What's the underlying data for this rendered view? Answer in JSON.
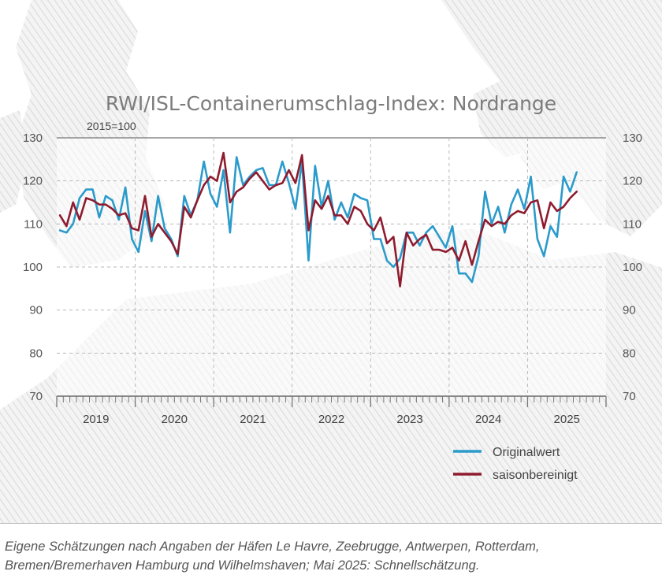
{
  "colors": {
    "original": "#2b9bcb",
    "seasonal": "#8e1b2e",
    "title": "#7c7c7c",
    "grid": "#b8b8b8",
    "map": "#e9e9e9"
  },
  "footnote": {
    "line1": "Eigene Schätzungen nach Angaben der Häfen Le Havre, Zeebrugge, Antwerpen, Rotterdam,",
    "line2": "Bremen/Bremerhaven Hamburg und Wilhelmshaven; Mai 2025: Schnellschätzung."
  },
  "chart_data": {
    "type": "line",
    "title": "RWI/ISL-Containerumschlag-Index: Nordrange",
    "subtitle": "2015=100",
    "ylim": [
      70,
      130
    ],
    "yticks": [
      "70",
      "80",
      "90",
      "100",
      "110",
      "120",
      "130"
    ],
    "years": [
      "2019",
      "2020",
      "2021",
      "2022",
      "2023",
      "2024",
      "2025"
    ],
    "x_start": "2019-01",
    "x_end": "2025-12",
    "grid": true,
    "legend_position": "bottom-right",
    "series": [
      {
        "name": "Originalwert",
        "color": "#2b9bcb",
        "values": [
          108.5,
          108,
          110,
          116,
          118,
          118,
          111.5,
          116.5,
          115.5,
          111,
          118.5,
          106.5,
          103.5,
          113,
          106,
          116.5,
          109,
          106.5,
          102.5,
          116.5,
          112,
          115.5,
          124.5,
          117,
          114,
          122.5,
          108,
          125.5,
          119,
          121,
          122.5,
          123,
          119,
          119,
          124.5,
          119.5,
          113.5,
          124.5,
          101.5,
          123.5,
          114,
          120,
          111,
          115,
          111.5,
          117,
          116,
          115.5,
          106.5,
          106.5,
          101.5,
          100,
          102,
          108,
          108,
          105,
          108,
          109.5,
          107,
          104.5,
          109.5,
          98.5,
          98.5,
          96.5,
          102.5,
          117.5,
          110,
          114,
          108,
          114.5,
          118,
          113.5,
          121,
          106.5,
          102.5,
          109.5,
          107,
          121,
          117.5,
          122
        ]
      },
      {
        "name": "saisonbereinigt",
        "color": "#8e1b2e",
        "values": [
          112,
          109.5,
          115,
          111,
          116,
          115.5,
          114.5,
          114.5,
          113.5,
          112,
          112.5,
          109,
          108.5,
          116.5,
          107,
          110,
          108,
          106,
          103,
          114,
          111.5,
          115.5,
          119,
          121,
          120,
          126.5,
          115,
          117.5,
          118.5,
          120.5,
          122,
          120,
          118,
          119,
          119.5,
          122.5,
          119.5,
          126,
          108.5,
          115.5,
          113.5,
          116.5,
          112,
          112,
          110,
          114,
          113,
          110,
          108.5,
          111.5,
          105.5,
          107,
          95.5,
          108,
          105,
          106.5,
          107.5,
          104,
          104,
          103.5,
          104.5,
          101.5,
          106,
          100.5,
          106,
          111,
          109.5,
          110.5,
          110,
          112,
          113,
          112.5,
          115,
          115.5,
          109,
          115,
          113,
          114,
          116,
          117.5
        ]
      }
    ]
  }
}
